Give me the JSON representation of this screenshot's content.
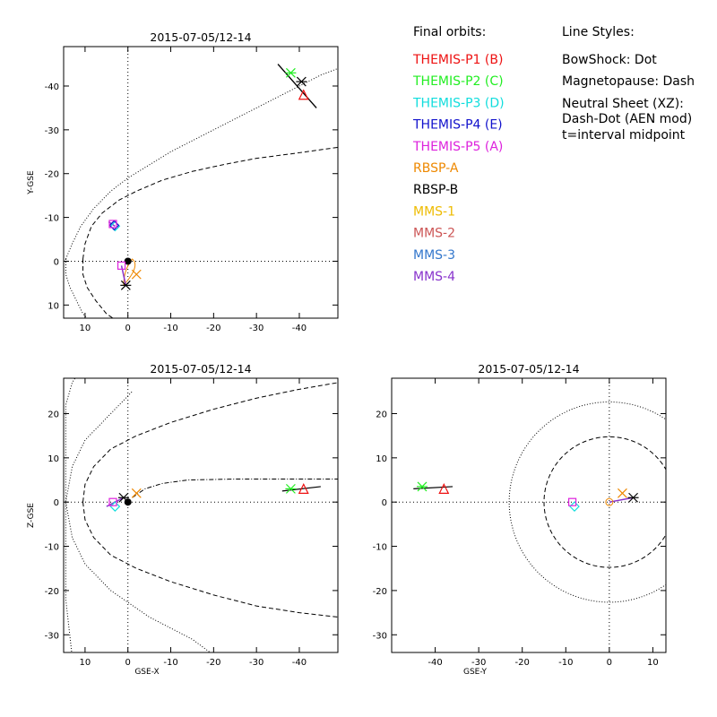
{
  "legend": {
    "orbits_header": "Final orbits:",
    "styles_header": "Line Styles:",
    "orbits": [
      {
        "label": "THEMIS-P1 (B)",
        "color": "#ee1111"
      },
      {
        "label": "THEMIS-P2 (C)",
        "color": "#22ee22"
      },
      {
        "label": "THEMIS-P3 (D)",
        "color": "#11dddd"
      },
      {
        "label": "THEMIS-P4 (E)",
        "color": "#1111cc"
      },
      {
        "label": "THEMIS-P5 (A)",
        "color": "#dd22dd"
      },
      {
        "label": "RBSP-A",
        "color": "#ee8800"
      },
      {
        "label": "RBSP-B",
        "color": "#000000"
      },
      {
        "label": "MMS-1",
        "color": "#eebb00"
      },
      {
        "label": "MMS-2",
        "color": "#cc5555"
      },
      {
        "label": "MMS-3",
        "color": "#3377cc"
      },
      {
        "label": "MMS-4",
        "color": "#8833cc"
      }
    ],
    "styles": [
      "BowShock: Dot",
      "Magnetopause: Dash",
      "Neutral Sheet (XZ):",
      "  Dash-Dot (AEN mod)",
      "  t=interval midpoint"
    ]
  },
  "chart_data": [
    {
      "type": "scatter",
      "title": "2015-07-05/12-14",
      "xlabel": "",
      "ylabel": "Y-GSE",
      "xlim": [
        15,
        -49
      ],
      "ylim": [
        13,
        -49
      ],
      "xticks": [
        10,
        0,
        -10,
        -20,
        -30,
        -40
      ],
      "yticks": [
        10,
        0,
        -10,
        -20,
        -30,
        -40
      ],
      "tick_labels_x": [
        "10",
        "0",
        "-10",
        "-20",
        "-30",
        "-40"
      ],
      "tick_labels_y": [
        "10",
        "0",
        "-10",
        "-20",
        "-30",
        "-40"
      ],
      "bowshock_curve": [
        [
          14.5,
          -0.5
        ],
        [
          13,
          -4
        ],
        [
          11,
          -8
        ],
        [
          8,
          -12
        ],
        [
          4,
          -16
        ],
        [
          0,
          -19
        ],
        [
          -5,
          -22
        ],
        [
          -10,
          -25
        ],
        [
          -15,
          -27.5
        ],
        [
          -20,
          -30
        ],
        [
          -25,
          -32.5
        ],
        [
          -30,
          -35
        ],
        [
          -35,
          -37.5
        ],
        [
          -40,
          -40
        ],
        [
          -45,
          -42.5
        ],
        [
          -49,
          -44
        ],
        [
          14.5,
          3
        ],
        [
          13.5,
          6
        ],
        [
          12,
          9
        ],
        [
          10.5,
          12
        ],
        [
          9.5,
          13
        ]
      ],
      "magnetopause_curve": [
        [
          10.5,
          -0.5
        ],
        [
          10,
          -4
        ],
        [
          8.5,
          -8
        ],
        [
          6,
          -11
        ],
        [
          2,
          -14
        ],
        [
          -2,
          -16
        ],
        [
          -8,
          -18.5
        ],
        [
          -15,
          -20.5
        ],
        [
          -22,
          -22
        ],
        [
          -30,
          -23.5
        ],
        [
          -38,
          -24.5
        ],
        [
          -49,
          -26
        ],
        [
          10.5,
          3
        ],
        [
          9.5,
          6
        ],
        [
          7.5,
          9
        ],
        [
          5,
          12
        ],
        [
          3.5,
          13
        ]
      ],
      "satellites": [
        {
          "name": "THEMIS-P1",
          "x": -41,
          "y": -38,
          "marker": "triangle",
          "color": "#ee1111"
        },
        {
          "name": "THEMIS-P2",
          "x": -38,
          "y": -43,
          "marker": "asterisk",
          "color": "#22ee22"
        },
        {
          "name": "THEMIS-P3",
          "x": 3,
          "y": -8,
          "marker": "diamond",
          "color": "#11dddd"
        },
        {
          "name": "THEMIS-P4",
          "x": 3.2,
          "y": -8.2,
          "marker": "diamond",
          "color": "#1111cc"
        },
        {
          "name": "THEMIS-P5",
          "x": 3.5,
          "y": -8.5,
          "marker": "square",
          "color": "#dd22dd"
        },
        {
          "name": "RBSP-A",
          "x": -2,
          "y": 3,
          "marker": "x",
          "color": "#ee8800"
        },
        {
          "name": "RBSP-B",
          "x": 0.5,
          "y": 5.5,
          "marker": "asterisk",
          "color": "#000000"
        },
        {
          "name": "THEMIS-P1",
          "x": -40.5,
          "y": -41,
          "marker": "asterisk",
          "color": "#000000"
        },
        {
          "name": "MMS-1",
          "x": 1.5,
          "y": 1,
          "marker": "square",
          "color": "#dd22dd"
        }
      ]
    },
    {
      "type": "scatter",
      "title": "2015-07-05/12-14",
      "xlabel": "GSE-X",
      "ylabel": "Z-GSE",
      "xlim": [
        15,
        -49
      ],
      "ylim": [
        -34,
        28
      ],
      "xticks": [
        10,
        0,
        -10,
        -20,
        -30,
        -40
      ],
      "yticks": [
        20,
        10,
        0,
        -10,
        -20,
        -30
      ],
      "tick_labels_x": [
        "10",
        "0",
        "-10",
        "-20",
        "-30",
        "-40"
      ],
      "tick_labels_y": [
        "20",
        "10",
        "0",
        "-10",
        "-20",
        "-30"
      ],
      "satellites": [
        {
          "name": "THEMIS-P1",
          "x": -41,
          "y": 3,
          "marker": "triangle",
          "color": "#ee1111"
        },
        {
          "name": "THEMIS-P2",
          "x": -38,
          "y": 3,
          "marker": "asterisk",
          "color": "#22ee22"
        },
        {
          "name": "THEMIS-P3",
          "x": 3,
          "y": -1,
          "marker": "diamond",
          "color": "#11dddd"
        },
        {
          "name": "THEMIS-P5",
          "x": 3.5,
          "y": 0,
          "marker": "square",
          "color": "#dd22dd"
        },
        {
          "name": "RBSP-A",
          "x": -2,
          "y": 2,
          "marker": "x",
          "color": "#ee8800"
        },
        {
          "name": "RBSP-B",
          "x": 1,
          "y": 1,
          "marker": "asterisk",
          "color": "#000000"
        }
      ]
    },
    {
      "type": "scatter",
      "title": "2015-07-05/12-14",
      "xlabel": "GSE-Y",
      "ylabel": "",
      "xlim": [
        -50,
        13
      ],
      "ylim": [
        -34,
        28
      ],
      "xticks": [
        -40,
        -30,
        -20,
        -10,
        0,
        10
      ],
      "yticks": [
        20,
        10,
        0,
        -10,
        -20,
        -30
      ],
      "tick_labels_x": [
        "-40",
        "-30",
        "-20",
        "-10",
        "0",
        "10"
      ],
      "tick_labels_y": [
        "20",
        "10",
        "0",
        "-10",
        "-20",
        "-30"
      ],
      "bowshock_radius": 23,
      "magnetopause_radius": 15,
      "satellites": [
        {
          "name": "THEMIS-P1",
          "x": -38,
          "y": 3,
          "marker": "triangle",
          "color": "#ee1111"
        },
        {
          "name": "THEMIS-P2",
          "x": -43,
          "y": 3.5,
          "marker": "asterisk",
          "color": "#22ee22"
        },
        {
          "name": "THEMIS-P3",
          "x": -8,
          "y": -1,
          "marker": "diamond",
          "color": "#11dddd"
        },
        {
          "name": "THEMIS-P5",
          "x": -8.5,
          "y": 0,
          "marker": "square",
          "color": "#dd22dd"
        },
        {
          "name": "RBSP-A",
          "x": 3,
          "y": 2,
          "marker": "x",
          "color": "#ee8800"
        },
        {
          "name": "RBSP-B",
          "x": 5.5,
          "y": 1,
          "marker": "asterisk",
          "color": "#000000"
        }
      ]
    }
  ]
}
